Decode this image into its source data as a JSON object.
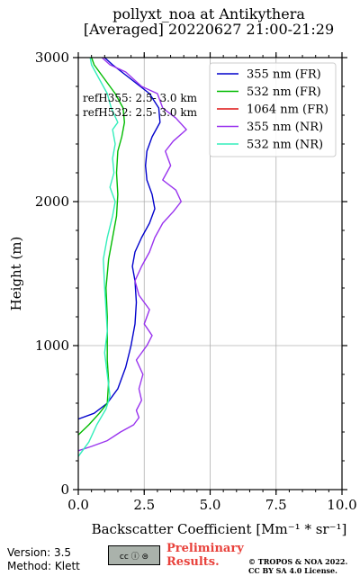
{
  "chart_data": {
    "type": "line",
    "title": "pollyxt_noa at Antikythera",
    "subtitle": "[Averaged] 20220627 21:00-21:29",
    "xlabel": "Backscatter Coefficient [Mm⁻¹ * sr⁻¹]",
    "ylabel": "Height (m)",
    "xlim": [
      0,
      10
    ],
    "ylim": [
      0,
      3000
    ],
    "xticks": [
      0,
      2.5,
      5,
      7.5,
      10
    ],
    "xtick_labels": [
      "0.0",
      "2.5",
      "5.0",
      "7.5",
      "10.0"
    ],
    "yticks": [
      0,
      1000,
      2000,
      3000
    ],
    "ytick_labels": [
      "0",
      "1000",
      "2000",
      "3000"
    ],
    "grid": true,
    "legend_position": "top-right",
    "annotations": [
      "refH355:  2.5- 3.0 km",
      "refH532:  2.5- 3.0 km"
    ],
    "series": [
      {
        "name": "355 nm (FR)",
        "color": "#0000cc",
        "points": [
          [
            0,
            490
          ],
          [
            0.6,
            530
          ],
          [
            1.1,
            600
          ],
          [
            1.5,
            700
          ],
          [
            1.8,
            850
          ],
          [
            2.0,
            1000
          ],
          [
            2.15,
            1150
          ],
          [
            2.2,
            1300
          ],
          [
            2.15,
            1450
          ],
          [
            2.05,
            1550
          ],
          [
            2.15,
            1650
          ],
          [
            2.4,
            1750
          ],
          [
            2.7,
            1850
          ],
          [
            2.9,
            1950
          ],
          [
            2.8,
            2050
          ],
          [
            2.6,
            2150
          ],
          [
            2.55,
            2250
          ],
          [
            2.6,
            2350
          ],
          [
            2.8,
            2450
          ],
          [
            3.1,
            2550
          ],
          [
            3.05,
            2650
          ],
          [
            2.7,
            2750
          ],
          [
            2.0,
            2850
          ],
          [
            1.3,
            2950
          ],
          [
            1.0,
            3000
          ]
        ]
      },
      {
        "name": "532 nm (FR)",
        "color": "#00bb00",
        "points": [
          [
            0,
            380
          ],
          [
            0.4,
            450
          ],
          [
            0.8,
            530
          ],
          [
            1.1,
            600
          ],
          [
            1.15,
            750
          ],
          [
            1.1,
            900
          ],
          [
            1.1,
            1050
          ],
          [
            1.1,
            1200
          ],
          [
            1.05,
            1400
          ],
          [
            1.15,
            1600
          ],
          [
            1.3,
            1750
          ],
          [
            1.45,
            1900
          ],
          [
            1.5,
            2050
          ],
          [
            1.45,
            2200
          ],
          [
            1.5,
            2350
          ],
          [
            1.65,
            2450
          ],
          [
            1.75,
            2550
          ],
          [
            1.7,
            2650
          ],
          [
            1.4,
            2750
          ],
          [
            1.0,
            2850
          ],
          [
            0.6,
            2950
          ],
          [
            0.5,
            3000
          ]
        ]
      },
      {
        "name": "1064 nm (FR)",
        "color": "#dd1111",
        "points": []
      },
      {
        "name": "355 nm (NR)",
        "color": "#9933ee",
        "points": [
          [
            0,
            270
          ],
          [
            0.5,
            300
          ],
          [
            1.1,
            340
          ],
          [
            1.6,
            400
          ],
          [
            2.1,
            450
          ],
          [
            2.3,
            500
          ],
          [
            2.2,
            550
          ],
          [
            2.4,
            620
          ],
          [
            2.3,
            700
          ],
          [
            2.45,
            800
          ],
          [
            2.2,
            900
          ],
          [
            2.6,
            1000
          ],
          [
            2.8,
            1070
          ],
          [
            2.5,
            1150
          ],
          [
            2.7,
            1250
          ],
          [
            2.3,
            1350
          ],
          [
            2.15,
            1450
          ],
          [
            2.4,
            1550
          ],
          [
            2.7,
            1650
          ],
          [
            2.9,
            1750
          ],
          [
            3.2,
            1850
          ],
          [
            3.6,
            1930
          ],
          [
            3.9,
            2000
          ],
          [
            3.7,
            2080
          ],
          [
            3.2,
            2150
          ],
          [
            3.5,
            2250
          ],
          [
            3.3,
            2350
          ],
          [
            3.6,
            2420
          ],
          [
            4.1,
            2500
          ],
          [
            3.7,
            2580
          ],
          [
            3.2,
            2650
          ],
          [
            3.0,
            2750
          ],
          [
            2.4,
            2800
          ],
          [
            2.1,
            2850
          ],
          [
            1.8,
            2900
          ],
          [
            1.2,
            2950
          ],
          [
            0.9,
            3000
          ]
        ]
      },
      {
        "name": "532 nm (NR)",
        "color": "#33eebb",
        "points": [
          [
            0,
            230
          ],
          [
            0.4,
            330
          ],
          [
            0.7,
            450
          ],
          [
            1.05,
            560
          ],
          [
            1.2,
            650
          ],
          [
            1.1,
            800
          ],
          [
            1.0,
            950
          ],
          [
            1.1,
            1100
          ],
          [
            1.05,
            1250
          ],
          [
            1.0,
            1400
          ],
          [
            0.95,
            1600
          ],
          [
            1.1,
            1750
          ],
          [
            1.3,
            1900
          ],
          [
            1.4,
            2000
          ],
          [
            1.2,
            2100
          ],
          [
            1.35,
            2200
          ],
          [
            1.3,
            2300
          ],
          [
            1.4,
            2400
          ],
          [
            1.3,
            2500
          ],
          [
            1.5,
            2550
          ],
          [
            1.25,
            2650
          ],
          [
            1.1,
            2750
          ],
          [
            0.8,
            2850
          ],
          [
            0.5,
            2950
          ],
          [
            0.45,
            3000
          ]
        ]
      }
    ]
  },
  "footer": {
    "version": "Version: 3.5",
    "method": "Method: Klett",
    "license_badge": "cc ⓘ ⊜",
    "preliminary_line1": "Preliminary",
    "preliminary_line2": "Results.",
    "copyright_line1": "© TROPOS & NOA 2022.",
    "copyright_line2": "CC BY SA 4.0 License."
  }
}
